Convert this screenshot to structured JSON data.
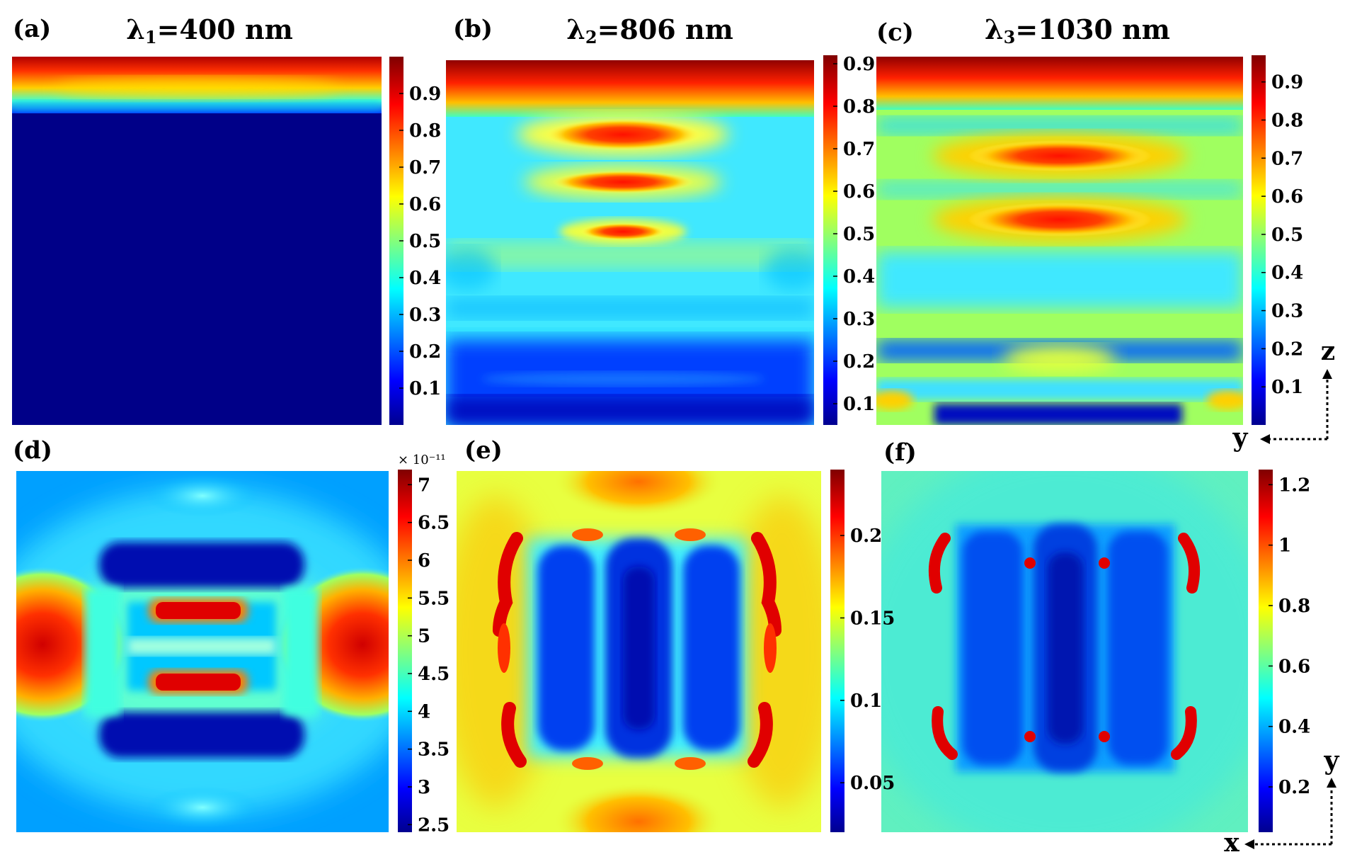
{
  "panels": [
    {
      "id": "a",
      "label": "(a)",
      "title": "λ1=400 nm",
      "title_main": "λ",
      "title_sub": "1",
      "title_rest": "=400 nm"
    },
    {
      "id": "b",
      "label": "(b)",
      "title": "λ2=806 nm",
      "title_main": "λ",
      "title_sub": "2",
      "title_rest": "=806 nm"
    },
    {
      "id": "c",
      "label": "(c)",
      "title": "λ3=1030 nm",
      "title_main": "λ",
      "title_sub": "3",
      "title_rest": "=1030 nm"
    },
    {
      "id": "d",
      "label": "(d)"
    },
    {
      "id": "e",
      "label": "(e)"
    },
    {
      "id": "f",
      "label": "(f)"
    }
  ],
  "axes_indicators": {
    "top": {
      "vertical": "z",
      "horizontal": "y"
    },
    "bottom": {
      "vertical": "y",
      "horizontal": "x"
    }
  },
  "colormap": "jet",
  "chart_data": [
    {
      "type": "heatmap",
      "panel": "(a)",
      "title": "λ1=400 nm",
      "plane": "y-z",
      "description_of_field": "normalized field, decays rapidly from top surface",
      "colorbar": {
        "ticks": [
          "0.1",
          "0.2",
          "0.3",
          "0.4",
          "0.5",
          "0.6",
          "0.7",
          "0.8",
          "0.9"
        ],
        "range": [
          0.0,
          1.0
        ]
      }
    },
    {
      "type": "heatmap",
      "panel": "(b)",
      "title": "λ2=806 nm",
      "plane": "y-z",
      "colorbar": {
        "ticks": [
          "0.1",
          "0.2",
          "0.3",
          "0.4",
          "0.5",
          "0.6",
          "0.7",
          "0.8",
          "0.9"
        ],
        "range": [
          0.05,
          0.92
        ]
      }
    },
    {
      "type": "heatmap",
      "panel": "(c)",
      "title": "λ3=1030 nm",
      "plane": "y-z",
      "colorbar": {
        "ticks": [
          "0.1",
          "0.2",
          "0.3",
          "0.4",
          "0.5",
          "0.6",
          "0.7",
          "0.8",
          "0.9"
        ],
        "range": [
          0.0,
          0.97
        ]
      }
    },
    {
      "type": "heatmap",
      "panel": "(d)",
      "plane": "x-y",
      "colorbar": {
        "ticks": [
          "2.5",
          "3",
          "3.5",
          "4",
          "4.5",
          "5",
          "5.5",
          "6",
          "6.5",
          "7"
        ],
        "range": [
          2.4,
          7.2
        ],
        "exponent_label": "× 10⁻¹¹"
      }
    },
    {
      "type": "heatmap",
      "panel": "(e)",
      "plane": "x-y",
      "colorbar": {
        "ticks": [
          "0.05",
          "0.1",
          "0.15",
          "0.2"
        ],
        "range": [
          0.02,
          0.24
        ]
      }
    },
    {
      "type": "heatmap",
      "panel": "(f)",
      "plane": "x-y",
      "colorbar": {
        "ticks": [
          "0.2",
          "0.4",
          "0.6",
          "0.8",
          "1",
          "1.2"
        ],
        "range": [
          0.05,
          1.25
        ]
      }
    }
  ]
}
